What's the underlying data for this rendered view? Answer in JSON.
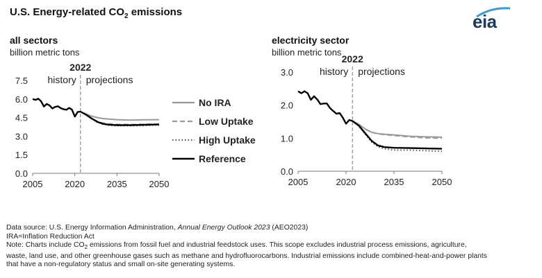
{
  "title_prefix": "U.S. Energy-related CO",
  "title_sub": "2",
  "title_suffix": " emissions",
  "logo_text": "eia",
  "notes": {
    "source_prefix": "Data source: U.S. Energy Information Administration, ",
    "source_italic": "Annual Energy Outlook 2023",
    "source_suffix": " (AEO2023)",
    "ira": "IRA=Inflation Reduction Act",
    "note_line1_prefix": "Note: Charts include CO",
    "note_line1_sub": "2",
    "note_line1_suffix": " emissions from fossil fuel and industrial feedstock uses. This scope excludes industrial process emissions, agriculture,",
    "note_line2": "waste, land use, and other greenhouse gases such as methane and hydrofluorocarbons. Industrial emissions include combined-heat-and-power plants",
    "note_line3": "that have a non-regulatory status and small on-site generating systems."
  },
  "legend": [
    {
      "name": "No IRA",
      "color": "#999999",
      "style": "solid"
    },
    {
      "name": "Low Uptake",
      "color": "#999999",
      "style": "dashed"
    },
    {
      "name": "High Uptake",
      "color": "#555555",
      "style": "dotted"
    },
    {
      "name": "Reference",
      "color": "#000000",
      "style": "solid"
    }
  ],
  "chart_data": [
    {
      "type": "line",
      "title": "all sectors",
      "ylabel": "billion metric tons",
      "xlim": [
        2005,
        2050
      ],
      "ylim": [
        0,
        7.5
      ],
      "xticks": [
        "2005",
        "2020",
        "2035",
        "2050"
      ],
      "yticks": [
        "0.0",
        "1.5",
        "3.0",
        "4.5",
        "6.0",
        "7.5"
      ],
      "divider_year": 2022,
      "divider_label": "2022",
      "history_label": "history",
      "projections_label": "projections",
      "history": {
        "x": [
          2005,
          2006,
          2007,
          2008,
          2009,
          2010,
          2011,
          2012,
          2013,
          2014,
          2015,
          2016,
          2017,
          2018,
          2019,
          2020,
          2021,
          2022
        ],
        "values": [
          6.0,
          5.93,
          6.02,
          5.82,
          5.39,
          5.6,
          5.48,
          5.24,
          5.36,
          5.41,
          5.26,
          5.17,
          5.13,
          5.28,
          5.14,
          4.58,
          4.95,
          4.98
        ]
      },
      "series": [
        {
          "name": "No IRA",
          "x": [
            2022,
            2024,
            2026,
            2028,
            2030,
            2032,
            2035,
            2040,
            2045,
            2050
          ],
          "values": [
            4.98,
            4.8,
            4.62,
            4.5,
            4.42,
            4.38,
            4.33,
            4.3,
            4.32,
            4.33
          ]
        },
        {
          "name": "Low Uptake",
          "x": [
            2022,
            2024,
            2026,
            2028,
            2030,
            2032,
            2035,
            2040,
            2045,
            2050
          ],
          "values": [
            4.98,
            4.74,
            4.45,
            4.2,
            4.06,
            4.0,
            3.95,
            3.94,
            3.96,
            3.98
          ]
        },
        {
          "name": "High Uptake",
          "x": [
            2022,
            2024,
            2026,
            2028,
            2030,
            2032,
            2035,
            2040,
            2045,
            2050
          ],
          "values": [
            4.98,
            4.72,
            4.4,
            4.12,
            3.96,
            3.88,
            3.84,
            3.84,
            3.87,
            3.9
          ]
        },
        {
          "name": "Reference",
          "x": [
            2022,
            2024,
            2026,
            2028,
            2030,
            2032,
            2035,
            2040,
            2045,
            2050
          ],
          "values": [
            4.98,
            4.73,
            4.43,
            4.16,
            4.0,
            3.93,
            3.89,
            3.89,
            3.92,
            3.94
          ]
        }
      ]
    },
    {
      "type": "line",
      "title": "electricity sector",
      "ylabel": "billion metric tons",
      "xlim": [
        2005,
        2050
      ],
      "ylim": [
        0,
        3.0
      ],
      "xticks": [
        "2005",
        "2020",
        "2035",
        "2050"
      ],
      "yticks": [
        "0.0",
        "1.0",
        "2.0",
        "3.0"
      ],
      "divider_year": 2022,
      "divider_label": "2022",
      "history_label": "history",
      "projections_label": "projections",
      "history": {
        "x": [
          2005,
          2006,
          2007,
          2008,
          2009,
          2010,
          2011,
          2012,
          2013,
          2014,
          2015,
          2016,
          2017,
          2018,
          2019,
          2020,
          2021,
          2022
        ],
        "values": [
          2.42,
          2.36,
          2.42,
          2.36,
          2.16,
          2.27,
          2.17,
          2.03,
          2.05,
          2.05,
          1.91,
          1.82,
          1.74,
          1.76,
          1.62,
          1.44,
          1.55,
          1.52
        ]
      },
      "series": [
        {
          "name": "No IRA",
          "x": [
            2022,
            2024,
            2026,
            2028,
            2030,
            2032,
            2035,
            2040,
            2045,
            2050
          ],
          "values": [
            1.52,
            1.42,
            1.28,
            1.18,
            1.14,
            1.12,
            1.1,
            1.06,
            1.04,
            1.03
          ]
        },
        {
          "name": "Low Uptake",
          "x": [
            2022,
            2024,
            2026,
            2028,
            2030,
            2032,
            2035,
            2040,
            2045,
            2050
          ],
          "values": [
            1.52,
            1.42,
            1.27,
            1.18,
            1.13,
            1.11,
            1.08,
            1.04,
            1.01,
            1.0
          ]
        },
        {
          "name": "High Uptake",
          "x": [
            2022,
            2024,
            2026,
            2028,
            2030,
            2032,
            2035,
            2040,
            2045,
            2050
          ],
          "values": [
            1.52,
            1.36,
            1.12,
            0.88,
            0.74,
            0.68,
            0.64,
            0.64,
            0.62,
            0.6
          ]
        },
        {
          "name": "Reference",
          "x": [
            2022,
            2024,
            2026,
            2028,
            2030,
            2032,
            2035,
            2040,
            2045,
            2050
          ],
          "values": [
            1.52,
            1.38,
            1.15,
            0.92,
            0.78,
            0.73,
            0.71,
            0.7,
            0.69,
            0.68
          ]
        }
      ]
    }
  ]
}
